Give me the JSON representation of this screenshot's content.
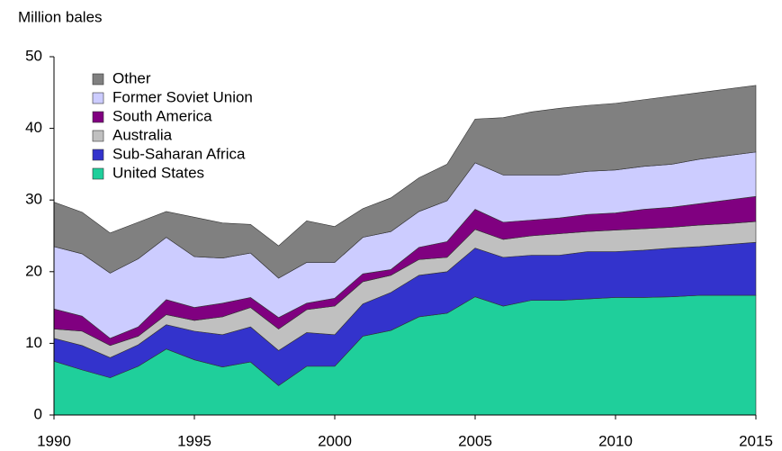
{
  "chart_data": {
    "type": "stacked-area",
    "ylabel": "Million bales",
    "x": [
      1990,
      1991,
      1992,
      1993,
      1994,
      1995,
      1996,
      1997,
      1998,
      1999,
      2000,
      2001,
      2002,
      2003,
      2004,
      2005,
      2006,
      2007,
      2008,
      2009,
      2010,
      2011,
      2012,
      2013,
      2014,
      2015
    ],
    "xlim": [
      1990,
      2015
    ],
    "xticks": [
      1990,
      1995,
      2000,
      2005,
      2010,
      2015
    ],
    "ylim": [
      0,
      50
    ],
    "yticks": [
      0,
      10,
      20,
      30,
      40,
      50
    ],
    "series": [
      {
        "name": "United States",
        "color": "#1fcf9b",
        "values": [
          7.5,
          6.3,
          5.2,
          6.8,
          9.2,
          7.7,
          6.7,
          7.4,
          4.1,
          6.8,
          6.8,
          11.0,
          11.8,
          13.7,
          14.2,
          16.5,
          15.2,
          16.0,
          16.0,
          16.2,
          16.4,
          16.4,
          16.5,
          16.7,
          16.7,
          16.7
        ]
      },
      {
        "name": "Sub-Saharan Africa",
        "color": "#3333cc",
        "values": [
          3.2,
          3.4,
          2.8,
          3.0,
          3.4,
          4.0,
          4.5,
          4.9,
          4.9,
          4.7,
          4.4,
          4.5,
          5.3,
          5.8,
          5.8,
          6.8,
          6.8,
          6.3,
          6.3,
          6.6,
          6.4,
          6.6,
          6.8,
          6.8,
          7.1,
          7.4
        ]
      },
      {
        "name": "Australia",
        "color": "#c0c0c0",
        "values": [
          1.3,
          2.0,
          1.7,
          1.2,
          1.4,
          1.5,
          2.5,
          2.7,
          3.0,
          3.2,
          4.0,
          3.1,
          2.4,
          2.2,
          2.0,
          2.6,
          2.5,
          2.7,
          3.0,
          2.8,
          3.0,
          3.0,
          2.9,
          3.0,
          2.9,
          2.9
        ]
      },
      {
        "name": "South America",
        "color": "#800080",
        "values": [
          2.8,
          2.1,
          1.0,
          1.3,
          2.1,
          1.8,
          1.9,
          1.4,
          1.6,
          0.9,
          1.1,
          1.1,
          0.8,
          1.7,
          2.2,
          2.8,
          2.4,
          2.2,
          2.2,
          2.4,
          2.4,
          2.7,
          2.8,
          3.0,
          3.3,
          3.5
        ]
      },
      {
        "name": "Former Soviet Union",
        "color": "#ccccff",
        "values": [
          8.7,
          8.7,
          9.1,
          9.5,
          8.7,
          7.1,
          6.3,
          6.2,
          5.5,
          5.7,
          5.0,
          5.1,
          5.3,
          5.0,
          5.7,
          6.5,
          6.6,
          6.3,
          6.0,
          6.0,
          6.0,
          6.0,
          6.0,
          6.2,
          6.2,
          6.2
        ]
      },
      {
        "name": "Other",
        "color": "#808080",
        "values": [
          6.2,
          5.8,
          5.6,
          5.1,
          3.6,
          5.5,
          4.9,
          4.0,
          4.5,
          5.8,
          5.0,
          4.0,
          4.7,
          4.7,
          5.1,
          6.1,
          8.0,
          8.8,
          9.3,
          9.2,
          9.3,
          9.3,
          9.5,
          9.3,
          9.3,
          9.3
        ]
      }
    ]
  }
}
